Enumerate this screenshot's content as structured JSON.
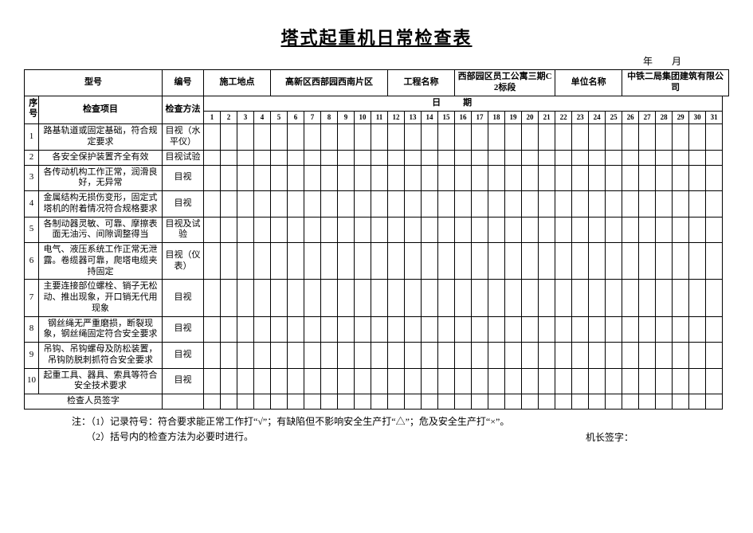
{
  "title": "塔式起重机日常检查表",
  "date_line": "年　　月",
  "header": {
    "model_label": "型号",
    "model_value": "",
    "number_label": "编号",
    "number_value": "",
    "site_label": "施工地点",
    "site_value": "高新区西部园西南片区",
    "project_label": "工程名称",
    "project_value": "西部园区员工公寓三期C2标段",
    "unit_label": "单位名称",
    "unit_value": "中铁二局集团建筑有限公司"
  },
  "col_seq": "序号",
  "col_item": "检查项目",
  "col_method": "检查方法",
  "col_date_1": "日",
  "col_date_2": "期",
  "days": [
    "1",
    "2",
    "3",
    "4",
    "5",
    "6",
    "7",
    "8",
    "9",
    "10",
    "11",
    "12",
    "13",
    "14",
    "15",
    "16",
    "17",
    "18",
    "19",
    "20",
    "21",
    "22",
    "23",
    "24",
    "25",
    "26",
    "27",
    "28",
    "29",
    "30",
    "31"
  ],
  "rows": [
    {
      "n": "1",
      "item": "路基轨道或固定基础，符合规定要求",
      "method": "目视（水平仪）"
    },
    {
      "n": "2",
      "item": "各安全保护装置齐全有效",
      "method": "目视试验"
    },
    {
      "n": "3",
      "item": "各传动机构工作正常，润滑良好，无异常",
      "method": "目视"
    },
    {
      "n": "4",
      "item": "金属结构无损伤变形，固定式塔机的附着情况符合规格要求",
      "method": "目视"
    },
    {
      "n": "5",
      "item": "各制动器灵敏、可靠、摩擦表面无油污、间隙调整得当",
      "method": "目视及试验"
    },
    {
      "n": "6",
      "item": "电气、液压系统工作正常无泄露。卷缆器可靠，爬塔电缆夹持固定",
      "method": "目视（仪表）"
    },
    {
      "n": "7",
      "item": "主要连接部位螺栓、销子无松动、推出现象，开口销无代用现象",
      "method": "目视"
    },
    {
      "n": "8",
      "item": "钢丝绳无严重磨损，断裂现象，钢丝绳固定符合安全要求",
      "method": "目视"
    },
    {
      "n": "9",
      "item": "吊钩、吊钩螺母及防松装置，吊钩防脱刺抓符合安全要求",
      "method": "目视"
    },
    {
      "n": "10",
      "item": "起重工具、器具、索具等符合安全技术要求",
      "method": "目视"
    }
  ],
  "signature_row": "检查人员签字",
  "notes_label": "注：",
  "note1": "（1）记录符号：符合要求能正常工作打“√”；有缺陷但不影响安全生产打“△”；危及安全生产打“×”。",
  "note2": "（2）括号内的检查方法为必要时进行。",
  "foreman_sign": "机长签字："
}
